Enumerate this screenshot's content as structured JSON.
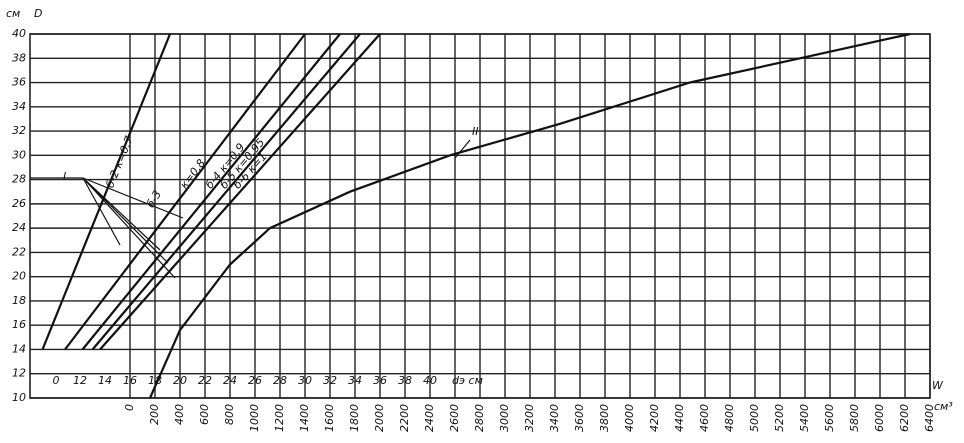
{
  "chart_data": {
    "type": "line",
    "y_unit": "см",
    "y_label": "D",
    "x_label": "dэ см",
    "x2_label": "W",
    "x2_unit": "см³",
    "x_break_label": "0",
    "xlim": [
      8,
      80
    ],
    "xticks": [
      12,
      14,
      16,
      18,
      20,
      22,
      24,
      26,
      28,
      30,
      32,
      34,
      36,
      38,
      40
    ],
    "x2lim": [
      -800,
      6400
    ],
    "x2ticks": [
      0,
      200,
      400,
      600,
      800,
      1000,
      1200,
      1400,
      1600,
      1800,
      2000,
      2200,
      2400,
      2600,
      2800,
      3000,
      3200,
      3400,
      3600,
      3800,
      4000,
      4200,
      4400,
      4600,
      4800,
      5000,
      5200,
      5400,
      5600,
      5800,
      6000,
      6200,
      6400
    ],
    "ylim": [
      10,
      40
    ],
    "yticks": [
      10,
      12,
      14,
      16,
      18,
      20,
      22,
      24,
      26,
      28,
      30,
      32,
      34,
      36,
      38,
      40
    ],
    "grid": true,
    "color": "#111111",
    "point_label": "I",
    "annotation": "б-3",
    "series": [
      {
        "name": "б-2 к=0,7",
        "x": [
          9.0,
          19.2
        ],
        "values": [
          14,
          40
        ]
      },
      {
        "name": "к=0,8",
        "x": [
          10.8,
          30
        ],
        "values": [
          14,
          40
        ]
      },
      {
        "name": "б-4 к=0,9",
        "x": [
          12.2,
          32.8
        ],
        "values": [
          14,
          40
        ]
      },
      {
        "name": "б-5 к=0,95",
        "x": [
          13.0,
          34.4
        ],
        "values": [
          14,
          40
        ]
      },
      {
        "name": "б-6 к=1",
        "x": [
          13.6,
          36
        ],
        "values": [
          14,
          40
        ]
      },
      {
        "name": "II",
        "axis": "x2",
        "x": [
          160,
          400,
          800,
          1120,
          1760,
          2560,
          3440,
          4480,
          5360,
          6240
        ],
        "values": [
          10,
          15.6,
          21,
          24,
          27,
          30,
          32.6,
          36,
          38,
          40
        ]
      }
    ]
  }
}
